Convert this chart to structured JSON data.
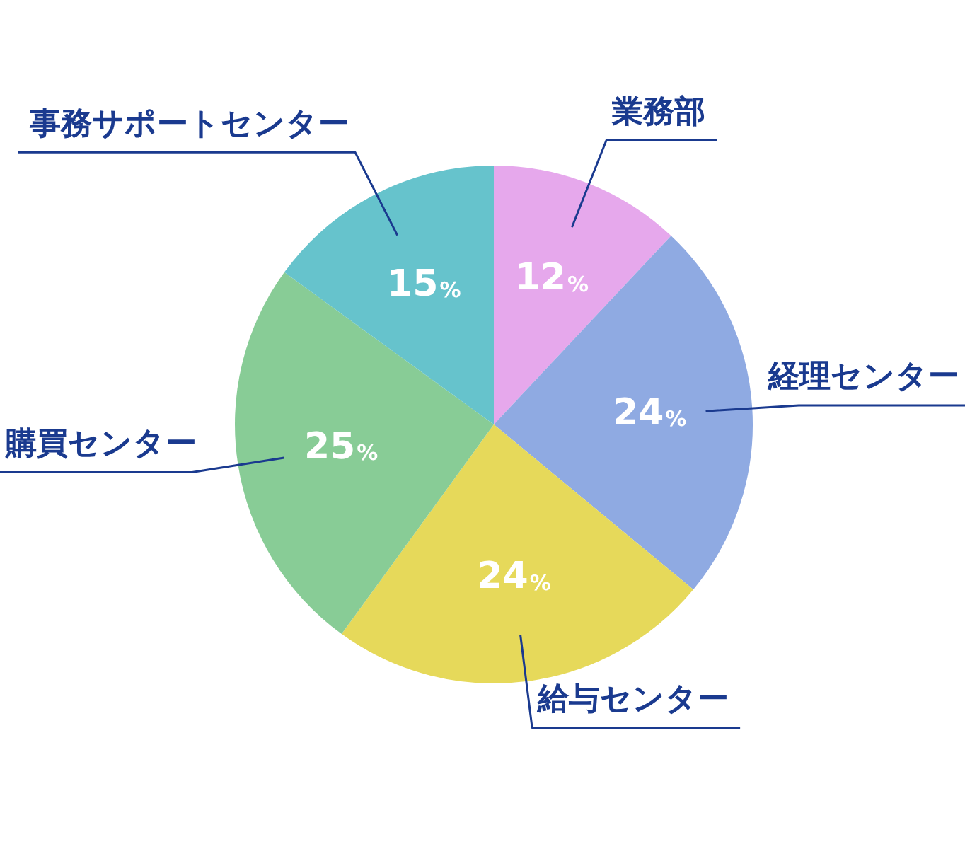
{
  "chart_data": {
    "type": "pie",
    "categories": [
      "業務部",
      "経理センター",
      "給与センター",
      "購買センター",
      "事務サポートセンター"
    ],
    "values": [
      12,
      24,
      24,
      25,
      15
    ],
    "colors": [
      "#e6a8ec",
      "#8faae2",
      "#e6d95a",
      "#88cc96",
      "#66c3cc"
    ],
    "data_labels": true,
    "value_labels": [
      "12%",
      "24%",
      "24%",
      "25%",
      "15%"
    ],
    "legend": false
  }
}
